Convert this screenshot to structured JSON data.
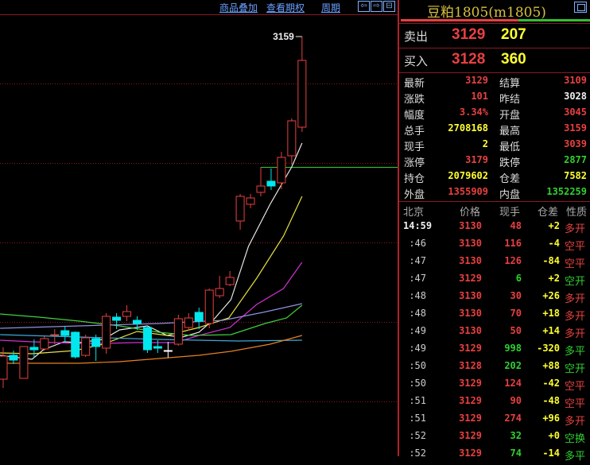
{
  "toolbar": {
    "overlay": "商品叠加",
    "options": "查看期权",
    "period": "周期",
    "nav": [
      "⇦",
      "⇨",
      "⊟"
    ]
  },
  "colors": {
    "up": "#e84040",
    "down": "#00e8ee",
    "flat": "#ffffff",
    "grid": "#8a1a22",
    "yellow": "#ffff30",
    "green": "#30d030",
    "white": "#eeeeee"
  },
  "chart_data": {
    "type": "candlestick",
    "high_label": "3159",
    "support_line": 2995,
    "grid_prices": [
      3100,
      3000,
      2900,
      2800,
      2700
    ],
    "candles": [
      [
        2728,
        2768,
        2717,
        2757
      ],
      [
        2758,
        2764,
        2747,
        2752
      ],
      [
        2729,
        2769,
        2729,
        2769
      ],
      [
        2768,
        2778,
        2755,
        2765
      ],
      [
        2766,
        2782,
        2764,
        2779
      ],
      [
        2784,
        2791,
        2772,
        2784
      ],
      [
        2789,
        2795,
        2774,
        2783
      ],
      [
        2787,
        2788,
        2754,
        2756
      ],
      [
        2758,
        2784,
        2756,
        2780
      ],
      [
        2779,
        2784,
        2751,
        2769
      ],
      [
        2767,
        2811,
        2760,
        2807
      ],
      [
        2806,
        2811,
        2791,
        2802
      ],
      [
        2807,
        2821,
        2801,
        2813
      ],
      [
        2802,
        2807,
        2790,
        2798
      ],
      [
        2793,
        2795,
        2761,
        2765
      ],
      [
        2769,
        2777,
        2761,
        2767
      ],
      [
        2764,
        2775,
        2755,
        2764
      ],
      [
        2772,
        2809,
        2770,
        2804
      ],
      [
        2793,
        2811,
        2789,
        2805
      ],
      [
        2812,
        2818,
        2791,
        2801
      ],
      [
        2798,
        2842,
        2792,
        2840
      ],
      [
        2833,
        2858,
        2830,
        2842
      ],
      [
        2847,
        2864,
        2845,
        2856
      ],
      [
        2927,
        2961,
        2916,
        2958
      ],
      [
        2948,
        2961,
        2943,
        2956
      ],
      [
        2963,
        2995,
        2958,
        2971
      ],
      [
        2977,
        2993,
        2966,
        2971
      ],
      [
        2975,
        3014,
        2967,
        3007
      ],
      [
        3009,
        3056,
        2998,
        3053
      ],
      [
        3045,
        3159,
        3039,
        3129
      ]
    ],
    "moving_averages": [
      {
        "color": "#e8e8e8",
        "points": [
          [
            -0.3,
            2758
          ],
          [
            2.8,
            2753
          ],
          [
            3.9,
            2765
          ],
          [
            5.9,
            2775
          ],
          [
            7.4,
            2774
          ],
          [
            9.7,
            2778
          ],
          [
            11.3,
            2790
          ],
          [
            14,
            2795
          ],
          [
            15.9,
            2783
          ],
          [
            17.4,
            2781
          ],
          [
            19,
            2787
          ],
          [
            20.5,
            2804
          ],
          [
            22.1,
            2828
          ],
          [
            23.8,
            2895
          ],
          [
            25.9,
            2948
          ],
          [
            28,
            2995
          ],
          [
            29,
            3025
          ]
        ]
      },
      {
        "color": "#e8e040",
        "points": [
          [
            -0.3,
            2761
          ],
          [
            2.8,
            2760
          ],
          [
            7,
            2764
          ],
          [
            9.7,
            2772
          ],
          [
            13,
            2788
          ],
          [
            15.9,
            2783
          ],
          [
            19,
            2793
          ],
          [
            21.9,
            2805
          ],
          [
            24.6,
            2855
          ],
          [
            27.2,
            2908
          ],
          [
            29,
            2958
          ]
        ]
      },
      {
        "color": "#d030d0",
        "points": [
          [
            -0.3,
            2777
          ],
          [
            2.8,
            2775
          ],
          [
            7.4,
            2773
          ],
          [
            9.9,
            2773
          ],
          [
            12.8,
            2774
          ],
          [
            16.7,
            2774
          ],
          [
            19,
            2783
          ],
          [
            22,
            2793
          ],
          [
            24.6,
            2822
          ],
          [
            27.2,
            2842
          ],
          [
            29,
            2875
          ]
        ]
      },
      {
        "color": "#40d040",
        "points": [
          [
            -0.3,
            2810
          ],
          [
            3.5,
            2806
          ],
          [
            7.4,
            2801
          ],
          [
            11.3,
            2795
          ],
          [
            15.1,
            2787
          ],
          [
            18.2,
            2783
          ],
          [
            22.1,
            2784
          ],
          [
            25.4,
            2798
          ],
          [
            27.5,
            2805
          ],
          [
            29,
            2821
          ]
        ]
      },
      {
        "color": "#9090e0",
        "points": [
          [
            -0.3,
            2792
          ],
          [
            7.4,
            2795
          ],
          [
            15.1,
            2798
          ],
          [
            21.3,
            2802
          ],
          [
            25.2,
            2812
          ],
          [
            29,
            2823
          ]
        ]
      },
      {
        "color": "#40a8d8",
        "points": [
          [
            -0.3,
            2784
          ],
          [
            7.4,
            2781
          ],
          [
            15.1,
            2778
          ],
          [
            22.8,
            2776
          ],
          [
            29,
            2777
          ]
        ]
      },
      {
        "color": "#e88020",
        "points": [
          [
            -0.3,
            2748
          ],
          [
            7.4,
            2748
          ],
          [
            11.3,
            2750
          ],
          [
            19,
            2758
          ],
          [
            22.1,
            2763
          ],
          [
            25.9,
            2772
          ],
          [
            29,
            2783
          ]
        ]
      }
    ]
  },
  "quote": {
    "title": "豆粕1805(m1805)",
    "ratio_buy": 0.62,
    "ask": {
      "label": "卖出",
      "price": "3129",
      "vol": "207"
    },
    "bid": {
      "label": "买入",
      "price": "3128",
      "vol": "360"
    },
    "rows": [
      {
        "l1": "最新",
        "v1": "3129",
        "c1": "up",
        "l2": "结算",
        "v2": "3109",
        "c2": "up"
      },
      {
        "l1": "涨跌",
        "v1": "101",
        "c1": "up",
        "l2": "昨结",
        "v2": "3028",
        "c2": "white"
      },
      {
        "l1": "幅度",
        "v1": "3.34%",
        "c1": "up",
        "l2": "开盘",
        "v2": "3045",
        "c2": "up"
      },
      {
        "l1": "总手",
        "v1": "2708168",
        "c1": "yellow",
        "l2": "最高",
        "v2": "3159",
        "c2": "up"
      },
      {
        "l1": "现手",
        "v1": "2",
        "c1": "yellow",
        "l2": "最低",
        "v2": "3039",
        "c2": "up"
      },
      {
        "l1": "涨停",
        "v1": "3179",
        "c1": "up",
        "l2": "跌停",
        "v2": "2877",
        "c2": "green"
      },
      {
        "l1": "持仓",
        "v1": "2079602",
        "c1": "yellow",
        "l2": "仓差",
        "v2": "7582",
        "c2": "yellow"
      },
      {
        "l1": "外盘",
        "v1": "1355909",
        "c1": "up",
        "l2": "内盘",
        "v2": "1352259",
        "c2": "green"
      }
    ]
  },
  "ticks": {
    "headers": [
      "北京",
      "价格",
      "现手",
      "仓差",
      "性质"
    ],
    "rows": [
      {
        "t": "14:59",
        "p": "3130",
        "v": "48",
        "vc": "up",
        "d": "+2",
        "n": "多开",
        "nc": "up"
      },
      {
        "t": ":46",
        "p": "3130",
        "v": "116",
        "vc": "up",
        "d": "-4",
        "n": "空平",
        "nc": "up"
      },
      {
        "t": ":47",
        "p": "3130",
        "v": "126",
        "vc": "up",
        "d": "-84",
        "n": "空平",
        "nc": "up"
      },
      {
        "t": ":47",
        "p": "3129",
        "v": "6",
        "vc": "green",
        "d": "+2",
        "n": "空开",
        "nc": "green"
      },
      {
        "t": ":48",
        "p": "3130",
        "v": "30",
        "vc": "up",
        "d": "+26",
        "n": "多开",
        "nc": "up"
      },
      {
        "t": ":48",
        "p": "3130",
        "v": "70",
        "vc": "up",
        "d": "+18",
        "n": "多开",
        "nc": "up"
      },
      {
        "t": ":49",
        "p": "3130",
        "v": "50",
        "vc": "up",
        "d": "+14",
        "n": "多开",
        "nc": "up"
      },
      {
        "t": ":49",
        "p": "3129",
        "v": "998",
        "vc": "green",
        "d": "-320",
        "n": "多平",
        "nc": "green"
      },
      {
        "t": ":50",
        "p": "3128",
        "v": "202",
        "vc": "green",
        "d": "+88",
        "n": "空开",
        "nc": "green"
      },
      {
        "t": ":50",
        "p": "3129",
        "v": "124",
        "vc": "up",
        "d": "-42",
        "n": "空平",
        "nc": "up"
      },
      {
        "t": ":51",
        "p": "3129",
        "v": "90",
        "vc": "up",
        "d": "-48",
        "n": "空平",
        "nc": "up"
      },
      {
        "t": ":51",
        "p": "3129",
        "v": "274",
        "vc": "up",
        "d": "+96",
        "n": "多开",
        "nc": "up"
      },
      {
        "t": ":52",
        "p": "3129",
        "v": "32",
        "vc": "green",
        "d": "+0",
        "n": "空换",
        "nc": "green"
      },
      {
        "t": ":52",
        "p": "3129",
        "v": "74",
        "vc": "green",
        "d": "-14",
        "n": "多平",
        "nc": "green"
      }
    ]
  }
}
